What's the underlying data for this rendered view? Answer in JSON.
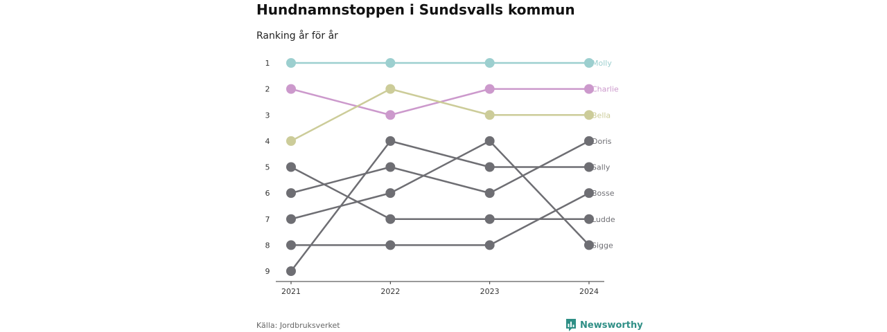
{
  "header": {
    "title": "Hundnamnstoppen i Sundsvalls kommun",
    "subtitle": "Ranking år för år"
  },
  "footer": {
    "source": "Källa: Jordbruksverket",
    "brand": "Newsworthy",
    "brand_icon": "bar-chart-logo-icon",
    "brand_color": "#2f8f86"
  },
  "chart_data": {
    "type": "line",
    "title": "Hundnamnstoppen i Sundsvalls kommun",
    "subtitle": "Ranking år för år",
    "x": [
      "2021",
      "2022",
      "2023",
      "2024"
    ],
    "y_ticks": [
      "1",
      "2",
      "3",
      "4",
      "5",
      "6",
      "7",
      "8",
      "9"
    ],
    "ylim": [
      1,
      9
    ],
    "y_inverted": true,
    "grid": false,
    "series": [
      {
        "name": "Molly",
        "values": [
          1,
          1,
          1,
          1
        ],
        "color": "#9ccfcf",
        "highlight": true
      },
      {
        "name": "Charlie",
        "values": [
          2,
          3,
          2,
          2
        ],
        "color": "#cc99cc",
        "highlight": true
      },
      {
        "name": "Bella",
        "values": [
          4,
          2,
          3,
          3
        ],
        "color": "#cccc99",
        "highlight": true
      },
      {
        "name": "Doris",
        "values": [
          6,
          5,
          6,
          4
        ],
        "color": "#6e6e73",
        "highlight": false
      },
      {
        "name": "Sally",
        "values": [
          9,
          4,
          5,
          5
        ],
        "color": "#6e6e73",
        "highlight": false
      },
      {
        "name": "Bosse",
        "values": [
          8,
          8,
          8,
          6
        ],
        "color": "#6e6e73",
        "highlight": false
      },
      {
        "name": "Ludde",
        "values": [
          5,
          7,
          7,
          7
        ],
        "color": "#6e6e73",
        "highlight": false
      },
      {
        "name": "Sigge",
        "values": [
          7,
          6,
          4,
          8
        ],
        "color": "#6e6e73",
        "highlight": false
      }
    ]
  }
}
